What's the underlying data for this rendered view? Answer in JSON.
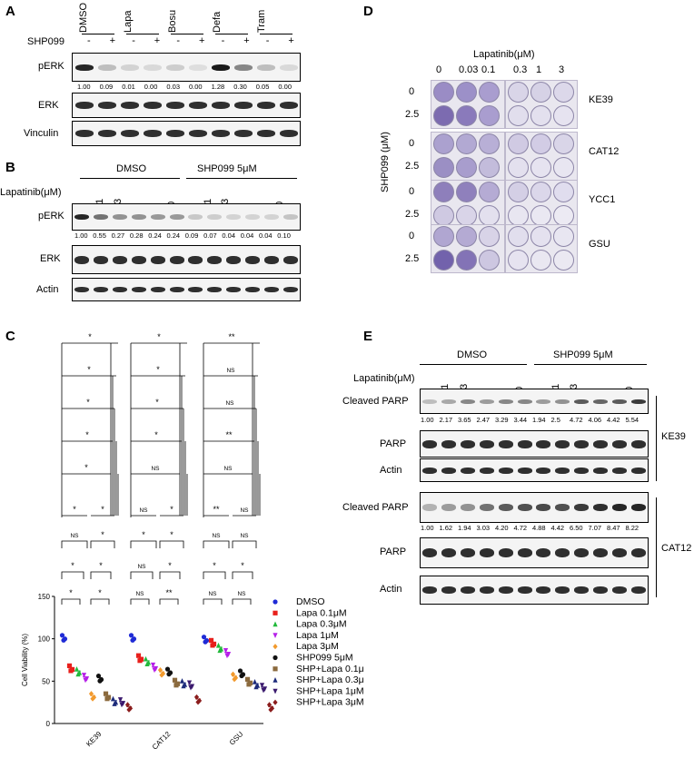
{
  "panels": {
    "a": "A",
    "b": "B",
    "c": "C",
    "d": "D",
    "e": "E"
  },
  "panel_a": {
    "treatment_label": "SHP099",
    "drugs": [
      "DMSO",
      "Lapa",
      "Bosu",
      "Defa",
      "Tram"
    ],
    "signs": [
      "-",
      "+",
      "-",
      "+",
      "-",
      "+",
      "-",
      "+",
      "-",
      "+"
    ],
    "rows": [
      "pERK",
      "ERK",
      "Vinculin"
    ],
    "quant": [
      "1.00",
      "0.09",
      "0.01",
      "0.00",
      "0.03",
      "0.00",
      "1.28",
      "0.30",
      "0.05",
      "0.00"
    ],
    "band_intensity": [
      0.95,
      0.25,
      0.15,
      0.12,
      0.18,
      0.1,
      1.0,
      0.5,
      0.25,
      0.12
    ]
  },
  "panel_b": {
    "groups": [
      "DMSO",
      "SHP099 5μM"
    ],
    "dose_label": "Lapatinib(μM)",
    "doses": [
      "0",
      "0.1",
      "0.3",
      "1",
      "3",
      "10",
      "0",
      "0.1",
      "0.3",
      "1",
      "3",
      "10"
    ],
    "rows": [
      "pERK",
      "ERK",
      "Actin"
    ],
    "quant": [
      "1.00",
      "0.55",
      "0.27",
      "0.28",
      "0.24",
      "0.24",
      "0.09",
      "0.07",
      "0.04",
      "0.04",
      "0.04",
      "0.10"
    ]
  },
  "panel_d": {
    "dose_label": "Lapatinib(μM)",
    "doses": [
      "0",
      "0.03",
      "0.1",
      "0.3",
      "1",
      "3"
    ],
    "y_label": "SHP099 (μM)",
    "shp_doses": [
      "0",
      "2.5"
    ],
    "cell_lines": [
      "KE39",
      "CAT12",
      "YCC1",
      "GSU"
    ]
  },
  "panel_c": {
    "ylabel": "Cell Viability (%)",
    "cell_lines": [
      "KE39",
      "CAT12",
      "GSU"
    ],
    "sig_labels": {
      "KE39": [
        "*",
        "*",
        "*",
        "*",
        "*",
        "*",
        "*",
        "NS",
        "*",
        "*",
        "*",
        "*",
        "*"
      ],
      "CAT12": [
        "*",
        "*",
        "*",
        "*",
        "NS",
        "NS",
        "*",
        "*",
        "*",
        "NS",
        "*",
        "NS",
        "**"
      ],
      "GSU": [
        "**",
        "NS",
        "NS",
        "**",
        "NS",
        "**",
        "NS",
        "NS",
        "NS",
        "*",
        "*",
        "NS",
        "NS"
      ]
    }
  },
  "chart_data": {
    "type": "scatter",
    "title": "",
    "xlabel": "",
    "ylabel": "Cell Viability (%)",
    "categories": [
      "KE39",
      "CAT12",
      "GSU"
    ],
    "ylim": [
      0,
      150
    ],
    "yticks": [
      0,
      50,
      100,
      150
    ],
    "series": [
      {
        "name": "DMSO",
        "color": "#1f2bd6",
        "marker": "circle",
        "values": [
          102,
          102,
          100
        ]
      },
      {
        "name": "Lapa 0.1μM",
        "color": "#e8201c",
        "marker": "square",
        "values": [
          66,
          78,
          96
        ]
      },
      {
        "name": "Lapa 0.3μM",
        "color": "#22b93b",
        "marker": "triangle-up",
        "values": [
          62,
          74,
          90
        ]
      },
      {
        "name": "Lapa 1μM",
        "color": "#b51fe8",
        "marker": "triangle-down",
        "values": [
          55,
          67,
          84
        ]
      },
      {
        "name": "Lapa 3μM",
        "color": "#f29a2e",
        "marker": "diamond",
        "values": [
          33,
          61,
          56
        ]
      },
      {
        "name": "SHP099 5μM",
        "color": "#111111",
        "marker": "circle",
        "values": [
          54,
          62,
          60
        ]
      },
      {
        "name": "SHP+Lapa 0.1μM",
        "color": "#8b6a3e",
        "marker": "square",
        "values": [
          33,
          49,
          50
        ]
      },
      {
        "name": "SHP+Lapa 0.3μM",
        "color": "#1c2a7a",
        "marker": "triangle-up",
        "values": [
          27,
          48,
          47
        ]
      },
      {
        "name": "SHP+Lapa 1μM",
        "color": "#3b1a6e",
        "marker": "triangle-down",
        "values": [
          26,
          46,
          43
        ]
      },
      {
        "name": "SHP+Lapa 3μM",
        "color": "#8b1d1d",
        "marker": "diamond",
        "values": [
          20,
          29,
          20
        ]
      }
    ]
  },
  "panel_e": {
    "groups": [
      "DMSO",
      "SHP099 5μM"
    ],
    "dose_label": "Lapatinib(μM)",
    "doses": [
      "0",
      "0.1",
      "0.3",
      "1",
      "3",
      "10",
      "0",
      "0.1",
      "0.3",
      "1",
      "3",
      "10"
    ],
    "rows_top": [
      "Cleaved PARP",
      "PARP",
      "Actin"
    ],
    "rows_bottom": [
      "Cleaved PARP",
      "PARP",
      "Actin"
    ],
    "quant_ke39": [
      "1.00",
      "2.17",
      "3.65",
      "2.47",
      "3.29",
      "3.44",
      "1.94",
      "2.5",
      "4.72",
      "4.06",
      "4.42",
      "5.54"
    ],
    "quant_cat12": [
      "1.00",
      "1.62",
      "1.94",
      "3.03",
      "4.20",
      "4.72",
      "4.88",
      "4.42",
      "6.50",
      "7.07",
      "8.47",
      "8.22"
    ],
    "cell_lines": [
      "KE39",
      "CAT12"
    ]
  }
}
